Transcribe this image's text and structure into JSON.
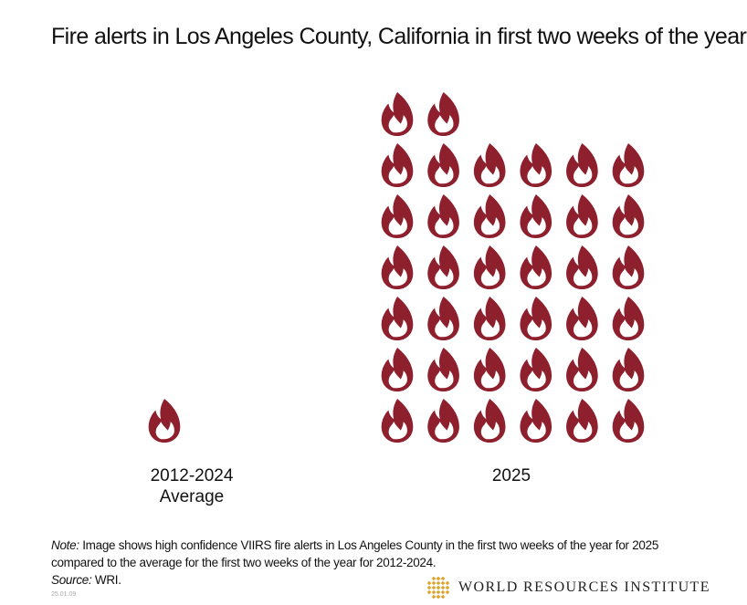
{
  "title": "Fire alerts in Los Angeles County, California in first two weeks of the year",
  "chart_data": {
    "type": "pictogram",
    "title": "Fire alerts in Los Angeles County, California in first two weeks of the year",
    "categories": [
      "2012-2024 Average",
      "2025"
    ],
    "category_labels": [
      [
        "2012-2024",
        "Average"
      ],
      [
        "2025"
      ]
    ],
    "values": [
      1.5,
      38
    ],
    "icons_per_row": [
      2,
      6
    ],
    "unit_icon": "flame-icon"
  },
  "colors": {
    "flame": "#8e1f2c",
    "brand_gold": "#e0a32a"
  },
  "note": {
    "label": "Note:",
    "text": " Image shows high confidence VIIRS fire alerts in Los Angeles County in the first two weeks of the year for 2025 compared to the average for the first two weeks of the year for 2012-2024.",
    "source_label": "Source:",
    "source_text": " WRI."
  },
  "stamp": "25.01.09",
  "brand": {
    "name": "WORLD RESOURCES INSTITUTE"
  }
}
